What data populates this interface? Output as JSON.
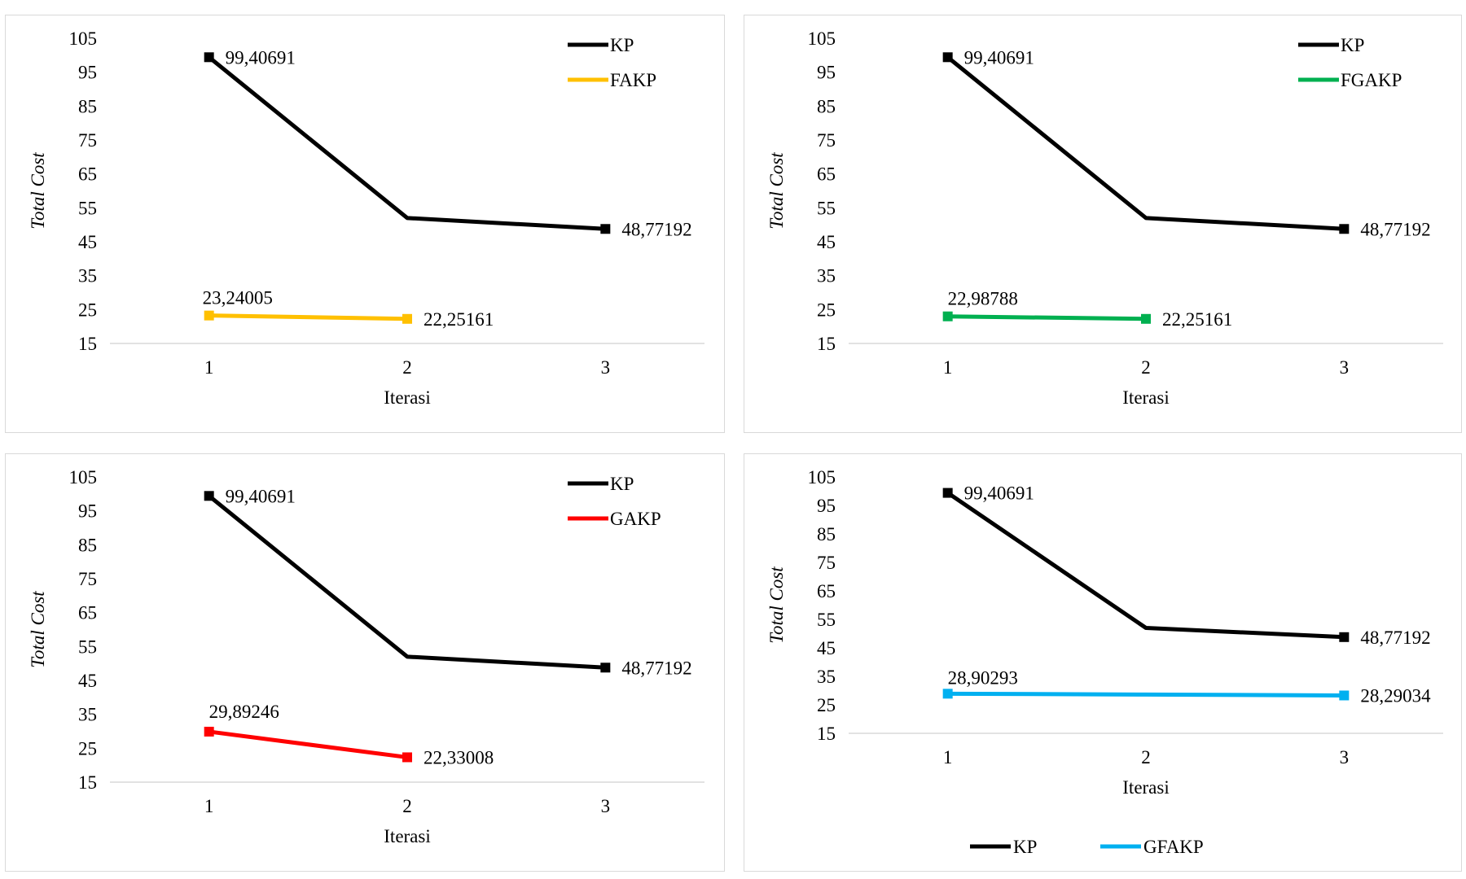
{
  "chart_data": [
    {
      "type": "line",
      "categories": [
        "1",
        "2",
        "3"
      ],
      "xlabel": "Iterasi",
      "ylabel": "Total Cost",
      "ylim": [
        15,
        105
      ],
      "yticks": [
        "15",
        "25",
        "35",
        "45",
        "55",
        "65",
        "75",
        "85",
        "95",
        "105"
      ],
      "legend_position": "top-right",
      "series": [
        {
          "name": "KP",
          "color": "#000000",
          "values": [
            99.40691,
            52,
            48.77192
          ],
          "labels": [
            "99,40691",
            null,
            "48,77192"
          ]
        },
        {
          "name": "FAKP",
          "color": "#FFC000",
          "values": [
            23.24005,
            22.25161,
            null
          ],
          "labels": [
            "23,24005",
            "22,25161",
            null
          ]
        }
      ]
    },
    {
      "type": "line",
      "categories": [
        "1",
        "2",
        "3"
      ],
      "xlabel": "Iterasi",
      "ylabel": "Total Cost",
      "ylim": [
        15,
        105
      ],
      "yticks": [
        "15",
        "25",
        "35",
        "45",
        "55",
        "65",
        "75",
        "85",
        "95",
        "105"
      ],
      "legend_position": "top-right",
      "series": [
        {
          "name": "KP",
          "color": "#000000",
          "values": [
            99.40691,
            52,
            48.77192
          ],
          "labels": [
            "99,40691",
            null,
            "48,77192"
          ]
        },
        {
          "name": "FGAKP",
          "color": "#00B050",
          "values": [
            22.98788,
            22.25161,
            null
          ],
          "labels": [
            "22,98788",
            "22,25161",
            null
          ]
        }
      ]
    },
    {
      "type": "line",
      "categories": [
        "1",
        "2",
        "3"
      ],
      "xlabel": "Iterasi",
      "ylabel": "Total Cost",
      "ylim": [
        15,
        105
      ],
      "yticks": [
        "15",
        "25",
        "35",
        "45",
        "55",
        "65",
        "75",
        "85",
        "95",
        "105"
      ],
      "legend_position": "top-right",
      "series": [
        {
          "name": "KP",
          "color": "#000000",
          "values": [
            99.40691,
            52,
            48.77192
          ],
          "labels": [
            "99,40691",
            null,
            "48,77192"
          ]
        },
        {
          "name": "GAKP",
          "color": "#FF0000",
          "values": [
            29.89246,
            22.33008,
            null
          ],
          "labels": [
            "29,89246",
            "22,33008",
            null
          ]
        }
      ]
    },
    {
      "type": "line",
      "categories": [
        "1",
        "2",
        "3"
      ],
      "xlabel": "Iterasi",
      "ylabel": "Total Cost",
      "ylim": [
        15,
        105
      ],
      "yticks": [
        "15",
        "25",
        "35",
        "45",
        "55",
        "65",
        "75",
        "85",
        "95",
        "105"
      ],
      "legend_position": "bottom",
      "series": [
        {
          "name": "KP",
          "color": "#000000",
          "values": [
            99.40691,
            52,
            48.77192
          ],
          "labels": [
            "99,40691",
            null,
            "48,77192"
          ]
        },
        {
          "name": "GFAKP",
          "color": "#00B0F0",
          "values": [
            28.90293,
            28.6,
            28.29034
          ],
          "labels": [
            "28,90293",
            null,
            "28,29034"
          ]
        }
      ]
    }
  ]
}
